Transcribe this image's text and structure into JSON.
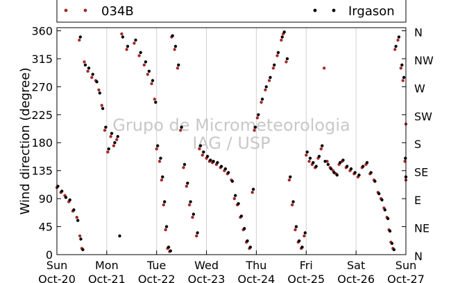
{
  "chart_data": {
    "type": "scatter",
    "title": "",
    "xlabel": "",
    "ylabel": "Wind direction (degree)",
    "ylim": [
      0,
      365
    ],
    "xlim": [
      "2015-10-20 00:00",
      "2015-10-27 00:00"
    ],
    "y_ticks": [
      0,
      45,
      90,
      135,
      180,
      225,
      270,
      315,
      360
    ],
    "y_ticks_right": [
      "N",
      "NE",
      "E",
      "SE",
      "S",
      "SW",
      "W",
      "NW",
      "N"
    ],
    "x_ticks": [
      {
        "day": "Sun",
        "date": "Oct-20"
      },
      {
        "day": "Mon",
        "date": "Oct-21"
      },
      {
        "day": "Tue",
        "date": "Oct-22"
      },
      {
        "day": "Wed",
        "date": "Oct-23"
      },
      {
        "day": "Thu",
        "date": "Oct-24"
      },
      {
        "day": "Fri",
        "date": "Oct-25"
      },
      {
        "day": "Sat",
        "date": "Oct-26"
      },
      {
        "day": "Sun",
        "date": "Oct-27"
      }
    ],
    "grid": "vertical",
    "legend": "top",
    "watermark": [
      "Grupo de Micrometeorologia",
      "IAG / USP"
    ],
    "series": [
      {
        "name": "034B",
        "color": "#a52a2a",
        "points": [
          [
            0.0,
            108
          ],
          [
            0.08,
            100
          ],
          [
            0.16,
            95
          ],
          [
            0.24,
            85
          ],
          [
            0.32,
            70
          ],
          [
            0.4,
            60
          ],
          [
            0.46,
            30
          ],
          [
            0.5,
            10
          ],
          [
            0.45,
            345
          ],
          [
            0.55,
            310
          ],
          [
            0.62,
            295
          ],
          [
            0.7,
            285
          ],
          [
            0.78,
            280
          ],
          [
            0.84,
            265
          ],
          [
            0.9,
            240
          ],
          [
            0.96,
            200
          ],
          [
            1.02,
            165
          ],
          [
            1.08,
            190
          ],
          [
            1.14,
            175
          ],
          [
            1.2,
            185
          ],
          [
            1.3,
            355
          ],
          [
            1.4,
            330
          ],
          [
            1.55,
            340
          ],
          [
            1.65,
            320
          ],
          [
            1.75,
            305
          ],
          [
            1.82,
            290
          ],
          [
            1.9,
            275
          ],
          [
            1.96,
            250
          ],
          [
            2.0,
            170
          ],
          [
            2.06,
            150
          ],
          [
            2.1,
            120
          ],
          [
            2.14,
            80
          ],
          [
            2.18,
            40
          ],
          [
            2.22,
            10
          ],
          [
            2.26,
            5
          ],
          [
            2.3,
            350
          ],
          [
            2.36,
            330
          ],
          [
            2.42,
            300
          ],
          [
            2.48,
            200
          ],
          [
            2.54,
            140
          ],
          [
            2.6,
            110
          ],
          [
            2.66,
            80
          ],
          [
            2.72,
            60
          ],
          [
            2.8,
            30
          ],
          [
            2.86,
            170
          ],
          [
            2.92,
            160
          ],
          [
            3.0,
            155
          ],
          [
            3.06,
            150
          ],
          [
            3.12,
            148
          ],
          [
            3.2,
            145
          ],
          [
            3.28,
            140
          ],
          [
            3.36,
            135
          ],
          [
            3.42,
            130
          ],
          [
            3.5,
            120
          ],
          [
            3.56,
            90
          ],
          [
            3.62,
            80
          ],
          [
            3.68,
            60
          ],
          [
            3.74,
            40
          ],
          [
            3.8,
            20
          ],
          [
            3.86,
            10
          ],
          [
            3.92,
            100
          ],
          [
            3.96,
            200
          ],
          [
            4.02,
            220
          ],
          [
            4.1,
            245
          ],
          [
            4.18,
            265
          ],
          [
            4.26,
            280
          ],
          [
            4.34,
            300
          ],
          [
            4.42,
            320
          ],
          [
            4.5,
            345
          ],
          [
            4.54,
            355
          ],
          [
            4.6,
            310
          ],
          [
            4.66,
            120
          ],
          [
            4.72,
            80
          ],
          [
            4.78,
            40
          ],
          [
            4.84,
            20
          ],
          [
            4.9,
            10
          ],
          [
            4.96,
            30
          ],
          [
            5.0,
            160
          ],
          [
            5.06,
            150
          ],
          [
            5.12,
            145
          ],
          [
            5.18,
            140
          ],
          [
            5.24,
            155
          ],
          [
            5.3,
            170
          ],
          [
            5.36,
            300
          ],
          [
            5.42,
            150
          ],
          [
            5.48,
            140
          ],
          [
            5.54,
            135
          ],
          [
            5.6,
            130
          ],
          [
            5.66,
            145
          ],
          [
            5.72,
            150
          ],
          [
            5.8,
            140
          ],
          [
            5.88,
            135
          ],
          [
            5.96,
            130
          ],
          [
            6.04,
            125
          ],
          [
            6.12,
            140
          ],
          [
            6.2,
            145
          ],
          [
            6.28,
            130
          ],
          [
            6.36,
            120
          ],
          [
            6.44,
            100
          ],
          [
            6.5,
            90
          ],
          [
            6.56,
            75
          ],
          [
            6.62,
            60
          ],
          [
            6.66,
            40
          ],
          [
            6.7,
            20
          ],
          [
            6.74,
            10
          ],
          [
            6.78,
            330
          ],
          [
            6.84,
            345
          ],
          [
            6.9,
            300
          ],
          [
            6.94,
            280
          ],
          [
            6.98,
            150
          ],
          [
            7.0,
            120
          ],
          [
            7.0,
            210
          ]
        ]
      },
      {
        "name": "Irgason",
        "color": "#000000",
        "points": [
          [
            0.02,
            110
          ],
          [
            0.1,
            102
          ],
          [
            0.18,
            92
          ],
          [
            0.26,
            88
          ],
          [
            0.34,
            72
          ],
          [
            0.42,
            55
          ],
          [
            0.48,
            25
          ],
          [
            0.52,
            8
          ],
          [
            0.47,
            350
          ],
          [
            0.57,
            305
          ],
          [
            0.64,
            300
          ],
          [
            0.72,
            290
          ],
          [
            0.8,
            278
          ],
          [
            0.86,
            260
          ],
          [
            0.92,
            235
          ],
          [
            0.98,
            205
          ],
          [
            1.04,
            170
          ],
          [
            1.1,
            195
          ],
          [
            1.16,
            180
          ],
          [
            1.22,
            190
          ],
          [
            1.26,
            30
          ],
          [
            1.32,
            350
          ],
          [
            1.42,
            335
          ],
          [
            1.58,
            345
          ],
          [
            1.68,
            325
          ],
          [
            1.78,
            310
          ],
          [
            1.85,
            295
          ],
          [
            1.92,
            280
          ],
          [
            1.98,
            245
          ],
          [
            2.02,
            175
          ],
          [
            2.08,
            155
          ],
          [
            2.12,
            125
          ],
          [
            2.16,
            85
          ],
          [
            2.2,
            45
          ],
          [
            2.24,
            12
          ],
          [
            2.28,
            6
          ],
          [
            2.32,
            352
          ],
          [
            2.38,
            335
          ],
          [
            2.44,
            305
          ],
          [
            2.5,
            205
          ],
          [
            2.56,
            145
          ],
          [
            2.62,
            115
          ],
          [
            2.68,
            85
          ],
          [
            2.74,
            65
          ],
          [
            2.82,
            35
          ],
          [
            2.88,
            175
          ],
          [
            2.94,
            165
          ],
          [
            3.02,
            158
          ],
          [
            3.08,
            152
          ],
          [
            3.14,
            150
          ],
          [
            3.22,
            148
          ],
          [
            3.3,
            142
          ],
          [
            3.38,
            138
          ],
          [
            3.44,
            132
          ],
          [
            3.52,
            118
          ],
          [
            3.58,
            95
          ],
          [
            3.64,
            82
          ],
          [
            3.7,
            62
          ],
          [
            3.76,
            42
          ],
          [
            3.82,
            22
          ],
          [
            3.88,
            12
          ],
          [
            3.94,
            105
          ],
          [
            3.98,
            205
          ],
          [
            4.04,
            225
          ],
          [
            4.12,
            250
          ],
          [
            4.2,
            270
          ],
          [
            4.28,
            285
          ],
          [
            4.36,
            305
          ],
          [
            4.44,
            325
          ],
          [
            4.52,
            350
          ],
          [
            4.56,
            358
          ],
          [
            4.62,
            315
          ],
          [
            4.68,
            125
          ],
          [
            4.74,
            85
          ],
          [
            4.8,
            45
          ],
          [
            4.86,
            22
          ],
          [
            4.92,
            12
          ],
          [
            4.98,
            35
          ],
          [
            5.02,
            165
          ],
          [
            5.08,
            155
          ],
          [
            5.14,
            148
          ],
          [
            5.2,
            142
          ],
          [
            5.26,
            158
          ],
          [
            5.32,
            175
          ],
          [
            5.38,
            150
          ],
          [
            5.44,
            145
          ],
          [
            5.5,
            138
          ],
          [
            5.56,
            132
          ],
          [
            5.62,
            128
          ],
          [
            5.68,
            148
          ],
          [
            5.74,
            152
          ],
          [
            5.82,
            142
          ],
          [
            5.9,
            138
          ],
          [
            5.98,
            132
          ],
          [
            6.06,
            128
          ],
          [
            6.14,
            142
          ],
          [
            6.22,
            148
          ],
          [
            6.3,
            132
          ],
          [
            6.38,
            118
          ],
          [
            6.46,
            98
          ],
          [
            6.52,
            88
          ],
          [
            6.58,
            72
          ],
          [
            6.64,
            58
          ],
          [
            6.68,
            38
          ],
          [
            6.72,
            18
          ],
          [
            6.76,
            8
          ],
          [
            6.8,
            335
          ],
          [
            6.86,
            350
          ],
          [
            6.92,
            305
          ],
          [
            6.96,
            285
          ],
          [
            6.99,
            155
          ],
          [
            7.0,
            125
          ]
        ]
      }
    ]
  }
}
